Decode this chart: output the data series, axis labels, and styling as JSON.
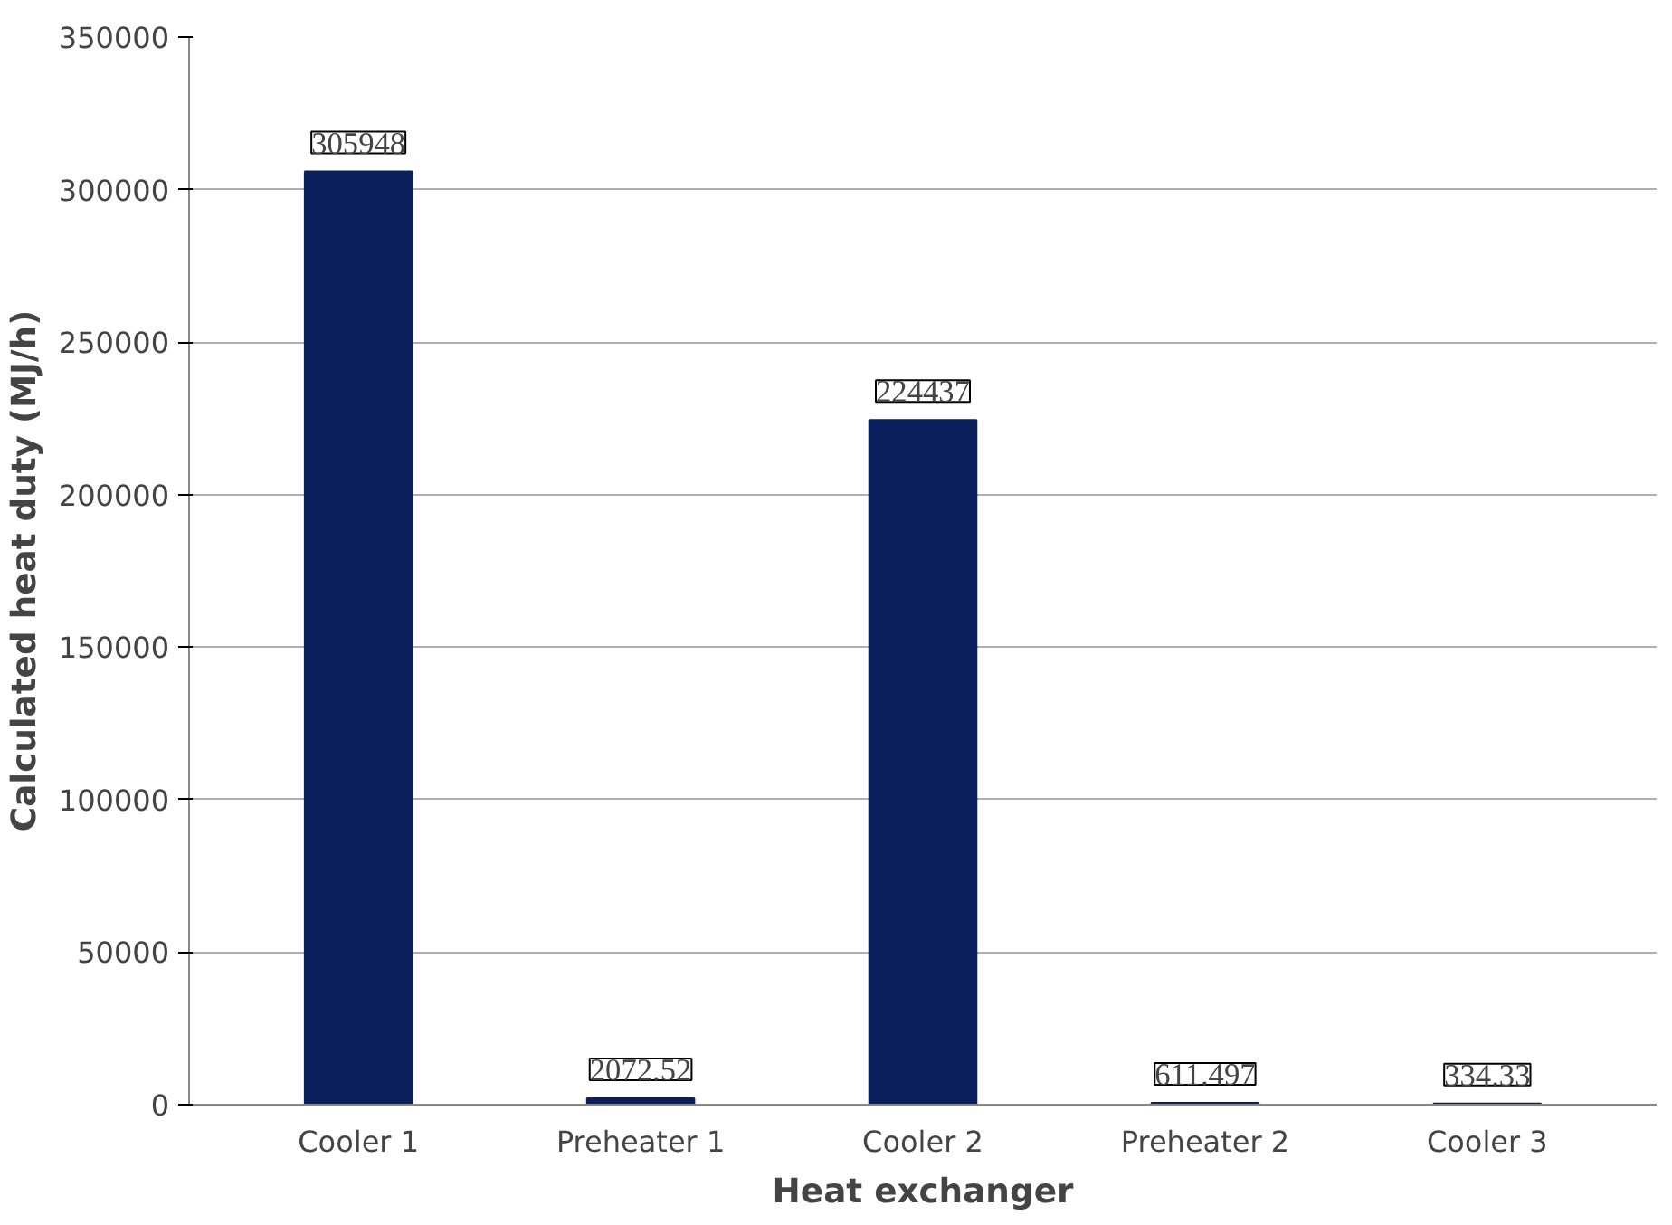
{
  "chart_data": {
    "type": "bar",
    "xlabel": "Heat exchanger",
    "ylabel": "Calculated heat duty (MJ/h)",
    "categories": [
      "Cooler 1",
      "Preheater 1",
      "Cooler 2",
      "Preheater 2",
      "Cooler 3"
    ],
    "values": [
      305948,
      2072.52,
      224437,
      611.497,
      334.33
    ],
    "color": "#0a1f5c",
    "ylim": [
      0,
      350000
    ],
    "yticks": [
      0,
      50000,
      100000,
      150000,
      200000,
      250000,
      300000,
      350000
    ],
    "grid": "y",
    "data_labels": true
  }
}
